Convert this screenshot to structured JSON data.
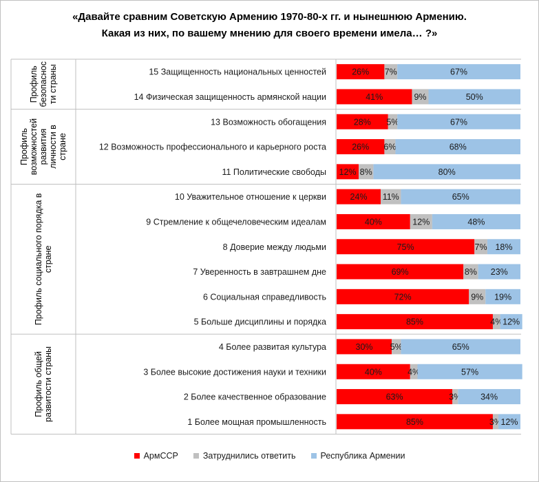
{
  "chart_data": {
    "type": "bar",
    "stacked": true,
    "orientation": "horizontal",
    "title_line1": "«Давайте сравним Советскую Армению 1970-80-х гг. и нынешнюю Армению.",
    "title_line2": "Какая из них, по вашему мнению для своего времени имела… ?»",
    "groups": [
      {
        "label_lines": [
          "Профиль",
          "безопаснос",
          "ти страны"
        ],
        "start": 0,
        "end": 1
      },
      {
        "label_lines": [
          "Профиль",
          "возможностей",
          "развития",
          "личности в",
          "стране"
        ],
        "start": 2,
        "end": 4
      },
      {
        "label_lines": [
          "Профиль социального порядка в",
          "стране"
        ],
        "start": 5,
        "end": 10
      },
      {
        "label_lines": [
          "Профиль общей",
          "развитости страны"
        ],
        "start": 11,
        "end": 14
      }
    ],
    "categories": [
      "15 Защищенность национальных ценностей",
      "14 Физическая защищенность армянской нации",
      "13 Возможность обогащения",
      "12 Возможность профессионального и карьерного роста",
      "11 Политические свободы",
      "10 Уважительное отношение  к церкви",
      "9 Стремление к общечеловеческим идеалам",
      "8 Доверие между людьми",
      "7 Уверенность в завтрашнем дне",
      "6 Социальная справедливость",
      "5 Больше дисциплины и порядка",
      "4 Более развитая культура",
      "3 Более высокие достижения науки и техники",
      "2 Более качественное образование",
      "1 Более мощная промышленность"
    ],
    "series": [
      {
        "name": "АрмССР",
        "color": "#ff0000",
        "values": [
          26,
          41,
          28,
          26,
          12,
          24,
          40,
          75,
          69,
          72,
          85,
          30,
          40,
          63,
          85
        ]
      },
      {
        "name": "Затруднились ответить",
        "color": "#c0c0c0",
        "values": [
          7,
          9,
          5,
          6,
          8,
          11,
          12,
          7,
          8,
          9,
          4,
          5,
          4,
          3,
          3
        ]
      },
      {
        "name": "Республика Армении",
        "color": "#9dc3e6",
        "values": [
          67,
          50,
          67,
          68,
          80,
          65,
          48,
          18,
          23,
          19,
          12,
          65,
          57,
          34,
          12
        ]
      }
    ],
    "value_suffix": "%",
    "xlim": [
      0,
      100
    ],
    "legend_position": "bottom"
  }
}
